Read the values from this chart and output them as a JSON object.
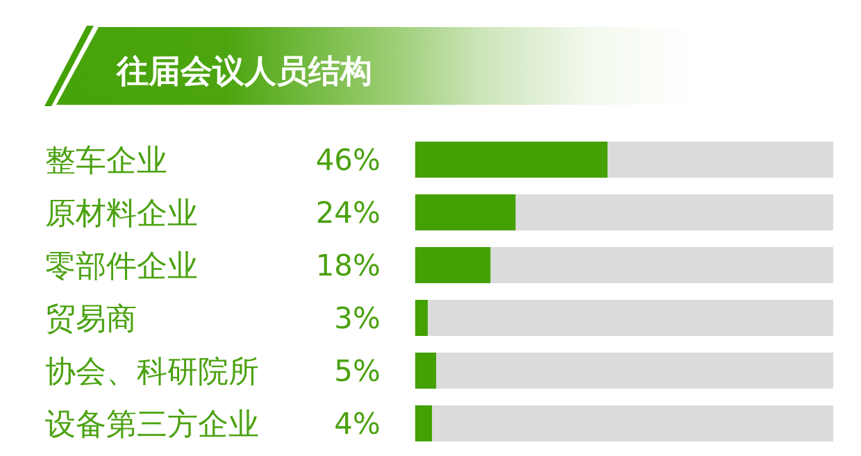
{
  "chart_data": {
    "type": "bar",
    "orientation": "horizontal",
    "title": "往届会议人员结构",
    "categories": [
      "整车企业",
      "原材料企业",
      "零部件企业",
      "贸易商",
      "协会、科研院所",
      "设备第三方企业"
    ],
    "values": [
      46,
      24,
      18,
      3,
      5,
      4
    ],
    "value_labels": [
      "46%",
      "24%",
      "18%",
      "3%",
      "5%",
      "4%"
    ],
    "color": "#43a104",
    "xlim": [
      0,
      100
    ],
    "tick_labels": "y"
  }
}
